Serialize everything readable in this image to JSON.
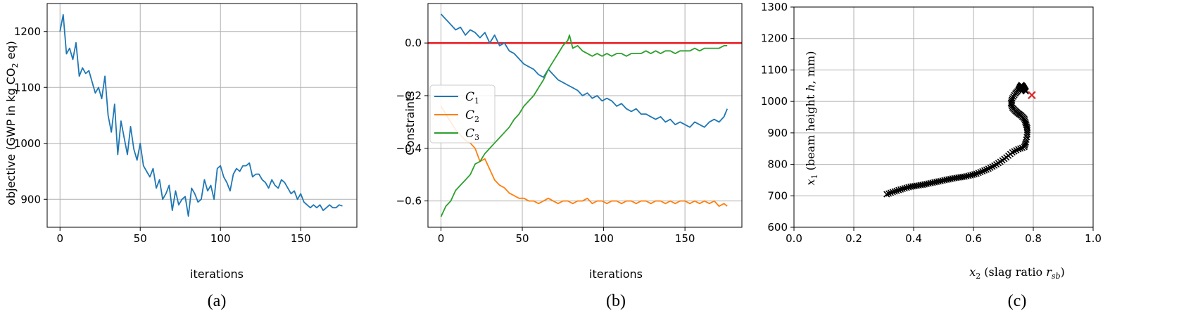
{
  "colors": {
    "c1": "#1f77b4",
    "c2": "#ff7f0e",
    "c3": "#2ca02c",
    "ref_line": "#e8161b",
    "grid": "#b0b0b0",
    "marker_path": "#000000",
    "marker_end": "#d62728"
  },
  "chart_data": [
    {
      "type": "line",
      "caption": "(a)",
      "xlabel": "iterations",
      "ylabel": "objective (GWP in kg CO",
      "ylabel_sub": "2",
      "ylabel_tail": " eq)",
      "xlim": [
        -8,
        185
      ],
      "ylim": [
        850,
        1250
      ],
      "xticks": [
        0,
        50,
        100,
        150
      ],
      "yticks": [
        900,
        1000,
        1100,
        1200
      ],
      "grid": true,
      "series": [
        {
          "color_key": "c1",
          "x": [
            0,
            2,
            4,
            6,
            8,
            10,
            12,
            14,
            16,
            18,
            20,
            22,
            24,
            26,
            28,
            30,
            32,
            34,
            36,
            38,
            40,
            42,
            44,
            46,
            48,
            50,
            52,
            54,
            56,
            58,
            60,
            62,
            64,
            66,
            68,
            70,
            72,
            74,
            76,
            78,
            80,
            82,
            84,
            86,
            88,
            90,
            92,
            94,
            96,
            98,
            100,
            102,
            104,
            106,
            108,
            110,
            112,
            114,
            116,
            118,
            120,
            122,
            124,
            126,
            128,
            130,
            132,
            134,
            136,
            138,
            140,
            142,
            144,
            146,
            148,
            150,
            152,
            154,
            156,
            158,
            160,
            162,
            164,
            166,
            168,
            170,
            172,
            174,
            176
          ],
          "y": [
            1200,
            1230,
            1160,
            1170,
            1150,
            1180,
            1120,
            1135,
            1125,
            1130,
            1110,
            1090,
            1100,
            1080,
            1120,
            1050,
            1020,
            1070,
            980,
            1040,
            1010,
            980,
            1030,
            990,
            970,
            1000,
            960,
            950,
            940,
            955,
            920,
            935,
            900,
            910,
            925,
            880,
            915,
            890,
            900,
            905,
            870,
            920,
            910,
            895,
            900,
            935,
            915,
            925,
            900,
            955,
            960,
            940,
            930,
            915,
            945,
            955,
            950,
            960,
            960,
            965,
            940,
            945,
            945,
            935,
            930,
            920,
            935,
            925,
            920,
            935,
            930,
            920,
            910,
            915,
            900,
            910,
            895,
            890,
            885,
            890,
            885,
            890,
            880,
            885,
            890,
            885,
            885,
            890,
            888
          ]
        }
      ]
    },
    {
      "type": "line",
      "caption": "(b)",
      "xlabel": "iterations",
      "ylabel": "Constraints",
      "xlim": [
        -8,
        185
      ],
      "ylim": [
        -0.7,
        0.15
      ],
      "xticks": [
        0,
        50,
        100,
        150
      ],
      "yticks": [
        -0.6,
        -0.4,
        -0.2,
        0.0
      ],
      "ytick_labels": [
        "−0.6",
        "−0.4",
        "−0.2",
        "0.0"
      ],
      "grid": true,
      "reference_line": {
        "y": 0.0,
        "color_key": "ref_line"
      },
      "legend": {
        "position": "center-left",
        "entries": [
          {
            "name": "C",
            "sub": "1",
            "color_key": "c1"
          },
          {
            "name": "C",
            "sub": "2",
            "color_key": "c2"
          },
          {
            "name": "C",
            "sub": "3",
            "color_key": "c3"
          }
        ]
      },
      "series": [
        {
          "name": "C1",
          "color_key": "c1",
          "x": [
            0,
            3,
            6,
            9,
            12,
            15,
            18,
            21,
            24,
            27,
            30,
            33,
            36,
            39,
            42,
            45,
            48,
            51,
            54,
            57,
            60,
            63,
            66,
            69,
            72,
            75,
            78,
            81,
            84,
            87,
            90,
            93,
            96,
            99,
            102,
            105,
            108,
            111,
            114,
            117,
            120,
            123,
            126,
            129,
            132,
            135,
            138,
            141,
            144,
            147,
            150,
            153,
            156,
            159,
            162,
            165,
            168,
            171,
            174,
            176
          ],
          "y": [
            0.11,
            0.09,
            0.07,
            0.05,
            0.06,
            0.03,
            0.05,
            0.04,
            0.02,
            0.04,
            0.0,
            0.03,
            -0.01,
            0.0,
            -0.03,
            -0.04,
            -0.06,
            -0.08,
            -0.09,
            -0.1,
            -0.12,
            -0.13,
            -0.1,
            -0.12,
            -0.14,
            -0.15,
            -0.16,
            -0.17,
            -0.18,
            -0.2,
            -0.19,
            -0.21,
            -0.2,
            -0.22,
            -0.21,
            -0.22,
            -0.24,
            -0.23,
            -0.25,
            -0.26,
            -0.25,
            -0.27,
            -0.27,
            -0.28,
            -0.29,
            -0.28,
            -0.3,
            -0.29,
            -0.31,
            -0.3,
            -0.31,
            -0.32,
            -0.3,
            -0.31,
            -0.32,
            -0.3,
            -0.29,
            -0.3,
            -0.28,
            -0.25
          ]
        },
        {
          "name": "C2",
          "color_key": "c2",
          "x": [
            0,
            3,
            6,
            9,
            12,
            15,
            18,
            21,
            24,
            27,
            30,
            33,
            36,
            39,
            42,
            45,
            48,
            51,
            54,
            57,
            60,
            63,
            66,
            69,
            72,
            75,
            78,
            81,
            84,
            87,
            90,
            93,
            96,
            99,
            102,
            105,
            108,
            111,
            114,
            117,
            120,
            123,
            126,
            129,
            132,
            135,
            138,
            141,
            144,
            147,
            150,
            153,
            156,
            159,
            162,
            165,
            168,
            171,
            174,
            176
          ],
          "y": [
            -0.24,
            -0.27,
            -0.3,
            -0.33,
            -0.35,
            -0.37,
            -0.38,
            -0.4,
            -0.45,
            -0.44,
            -0.48,
            -0.52,
            -0.54,
            -0.55,
            -0.57,
            -0.58,
            -0.59,
            -0.59,
            -0.6,
            -0.6,
            -0.61,
            -0.6,
            -0.59,
            -0.6,
            -0.61,
            -0.6,
            -0.6,
            -0.61,
            -0.6,
            -0.6,
            -0.59,
            -0.61,
            -0.6,
            -0.6,
            -0.61,
            -0.6,
            -0.6,
            -0.61,
            -0.6,
            -0.6,
            -0.61,
            -0.6,
            -0.6,
            -0.61,
            -0.6,
            -0.6,
            -0.61,
            -0.6,
            -0.61,
            -0.6,
            -0.6,
            -0.61,
            -0.6,
            -0.61,
            -0.6,
            -0.61,
            -0.6,
            -0.62,
            -0.61,
            -0.62
          ]
        },
        {
          "name": "C3",
          "color_key": "c3",
          "x": [
            0,
            3,
            6,
            9,
            12,
            15,
            18,
            21,
            24,
            27,
            30,
            33,
            36,
            39,
            42,
            45,
            48,
            51,
            54,
            57,
            60,
            63,
            66,
            69,
            72,
            75,
            78,
            79,
            81,
            84,
            87,
            90,
            93,
            96,
            99,
            102,
            105,
            108,
            111,
            114,
            117,
            120,
            123,
            126,
            129,
            132,
            135,
            138,
            141,
            144,
            147,
            150,
            153,
            156,
            159,
            162,
            165,
            168,
            171,
            174,
            176
          ],
          "y": [
            -0.66,
            -0.62,
            -0.6,
            -0.56,
            -0.54,
            -0.52,
            -0.5,
            -0.46,
            -0.45,
            -0.42,
            -0.4,
            -0.38,
            -0.36,
            -0.34,
            -0.32,
            -0.29,
            -0.27,
            -0.24,
            -0.22,
            -0.2,
            -0.17,
            -0.14,
            -0.1,
            -0.07,
            -0.04,
            -0.01,
            0.01,
            0.03,
            -0.02,
            -0.01,
            -0.03,
            -0.04,
            -0.05,
            -0.04,
            -0.05,
            -0.04,
            -0.05,
            -0.04,
            -0.04,
            -0.05,
            -0.04,
            -0.04,
            -0.04,
            -0.03,
            -0.04,
            -0.03,
            -0.04,
            -0.03,
            -0.03,
            -0.04,
            -0.03,
            -0.03,
            -0.03,
            -0.02,
            -0.03,
            -0.02,
            -0.02,
            -0.02,
            -0.02,
            -0.01,
            -0.01
          ]
        }
      ]
    },
    {
      "type": "scatter",
      "caption": "(c)",
      "xlabel_prefix": "x",
      "xlabel_sub": "2",
      "xlabel_mid": " (slag ratio ",
      "xlabel_var": "r",
      "xlabel_var_sub": "sb",
      "xlabel_end": ")",
      "ylabel_prefix": "x",
      "ylabel_sub": "1",
      "ylabel_mid": " (beam height ",
      "ylabel_var": "h",
      "ylabel_end": ", mm)",
      "xlim": [
        0.0,
        1.0
      ],
      "ylim": [
        600,
        1300
      ],
      "xticks": [
        0.0,
        0.2,
        0.4,
        0.6,
        0.8,
        1.0
      ],
      "xtick_labels": [
        "0.0",
        "0.2",
        "0.4",
        "0.6",
        "0.8",
        "1.0"
      ],
      "yticks": [
        600,
        700,
        800,
        900,
        1000,
        1100,
        1200,
        1300
      ],
      "grid": true,
      "marker": "x",
      "series": [
        {
          "color_key": "marker_path",
          "x": [
            0.31,
            0.33,
            0.35,
            0.37,
            0.39,
            0.41,
            0.43,
            0.45,
            0.47,
            0.49,
            0.51,
            0.53,
            0.55,
            0.57,
            0.59,
            0.61,
            0.63,
            0.65,
            0.67,
            0.69,
            0.71,
            0.73,
            0.75,
            0.77,
            0.775,
            0.78,
            0.78,
            0.775,
            0.77,
            0.76,
            0.75,
            0.74,
            0.73,
            0.725,
            0.73,
            0.74,
            0.75,
            0.755,
            0.76,
            0.765,
            0.77,
            0.775
          ],
          "y": [
            705,
            712,
            718,
            724,
            729,
            732,
            735,
            739,
            743,
            747,
            751,
            755,
            758,
            761,
            765,
            770,
            778,
            786,
            796,
            808,
            822,
            838,
            848,
            855,
            870,
            895,
            915,
            930,
            945,
            955,
            962,
            970,
            980,
            995,
            1010,
            1025,
            1035,
            1045,
            1052,
            1048,
            1040,
            1032
          ]
        },
        {
          "color_key": "marker_end",
          "x": [
            0.795
          ],
          "y": [
            1020
          ]
        }
      ]
    }
  ]
}
